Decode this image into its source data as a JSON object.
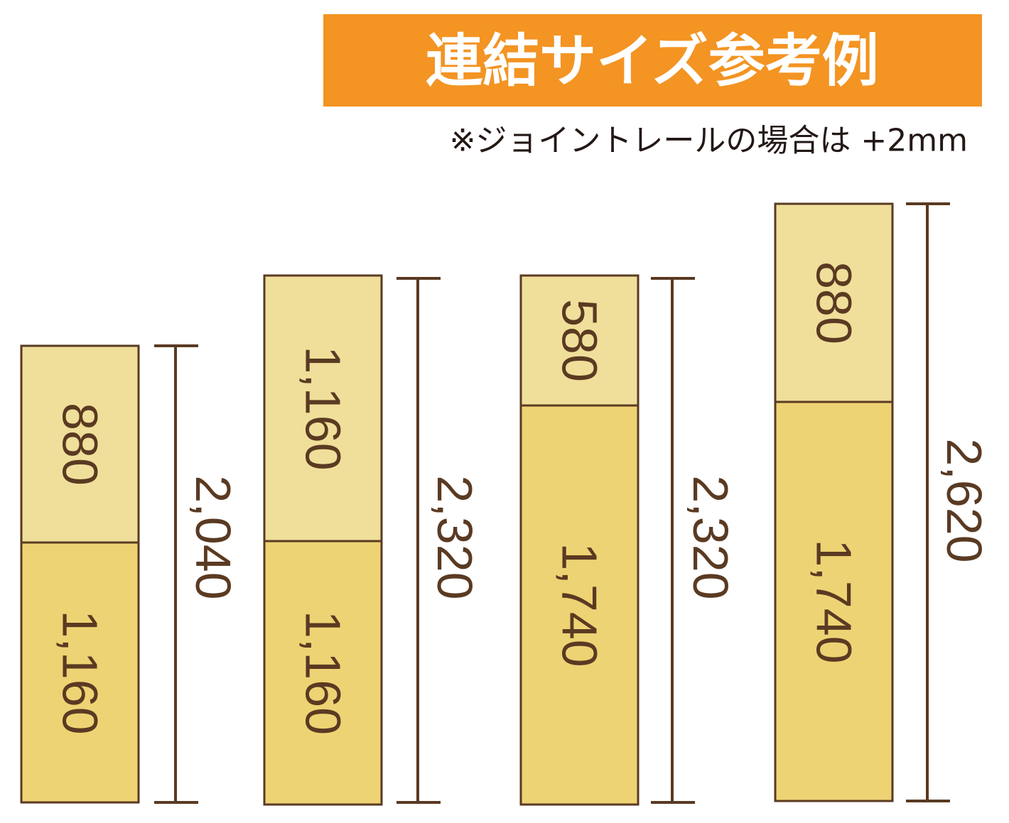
{
  "header": {
    "title": "連結サイズ参考例",
    "note": "※ジョイントレールの場合は +2mm"
  },
  "columns": [
    {
      "segments": [
        "880",
        "1,160"
      ],
      "total": "2,040"
    },
    {
      "segments": [
        "1,160",
        "1,160"
      ],
      "total": "2,320"
    },
    {
      "segments": [
        "580",
        "1,740"
      ],
      "total": "2,320"
    },
    {
      "segments": [
        "880",
        "1,740"
      ],
      "total": "2,620"
    }
  ]
}
